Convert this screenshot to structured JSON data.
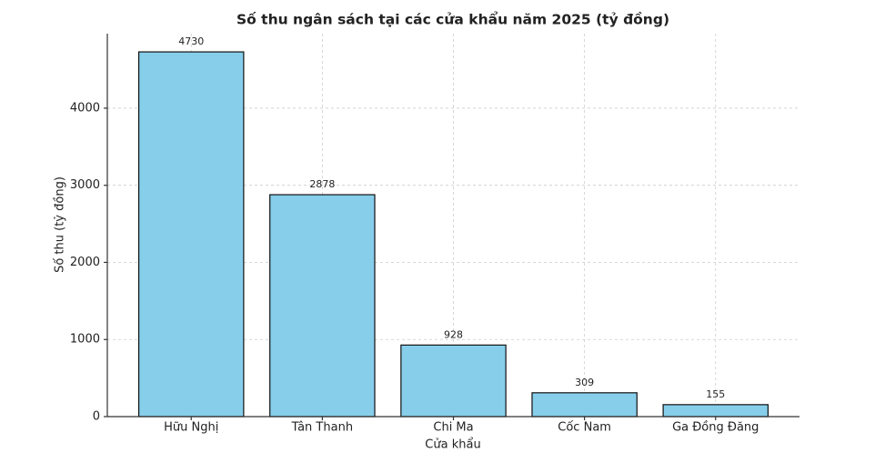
{
  "chart_data": {
    "type": "bar",
    "title": "Số thu ngân sách tại các cửa khẩu năm 2025 (tỷ đồng)",
    "x_label": "Cửa khẩu",
    "y_label": "Số thu (tỷ đồng)",
    "categories": [
      "Hữu Nghị",
      "Tân Thanh",
      "Chi Ma",
      "Cốc Nam",
      "Ga Đồng Đăng"
    ],
    "values": [
      4730,
      2878,
      928,
      309,
      155
    ],
    "color": "#87ceeb",
    "ylim": [
      0,
      4966.5
    ],
    "yticks": [
      0,
      1000,
      2000,
      3000,
      4000
    ],
    "grid": true
  }
}
